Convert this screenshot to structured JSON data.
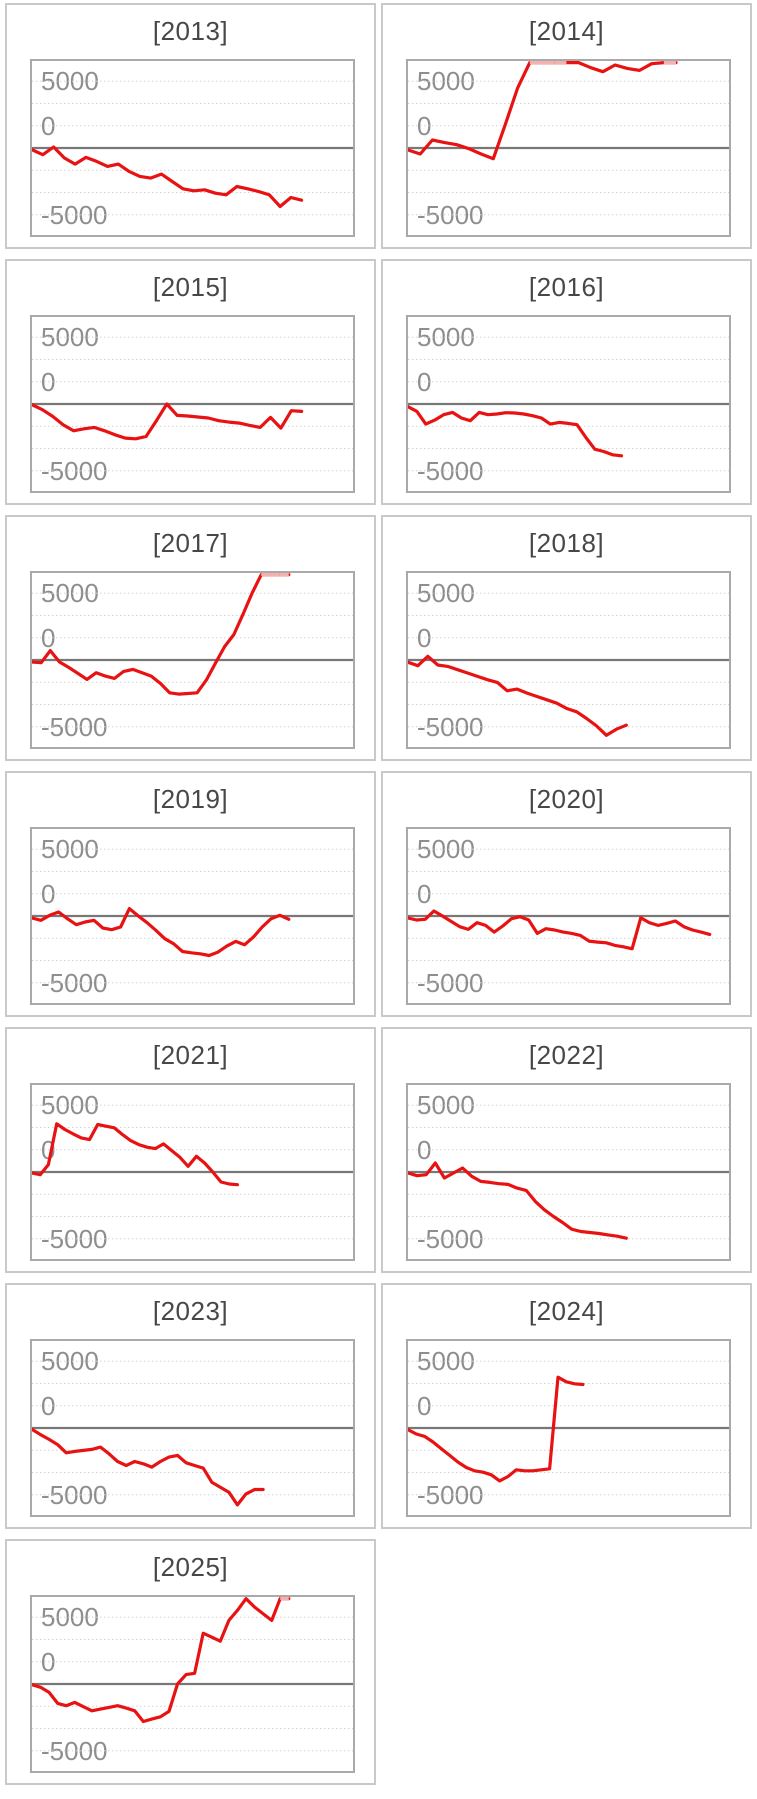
{
  "page": {
    "background": "#ffffff"
  },
  "axis": {
    "tick_labels": {
      "top": "5000",
      "mid": "0",
      "bottom": "-5000"
    },
    "ylim": [
      -6675,
      6675
    ],
    "grid": "dotted-horizontal",
    "zero_line": true
  },
  "style": {
    "series_color": "#e81212",
    "clipped_color": "#f2b2b2",
    "grid_color": "#d2d2d2",
    "zero_line_color": "#787878",
    "plot_border_color": "#a9a9a9",
    "panel_border_color": "#c9c9c9",
    "label_color": "#8e8e8e",
    "title_color": "#474747"
  },
  "chart_data": [
    {
      "type": "line",
      "title": "[2013]",
      "yticks": [
        5000,
        0,
        -5000
      ],
      "ylim": [
        -6675,
        6675
      ],
      "span": 0.84,
      "values": [
        -125,
        -500,
        75,
        -750,
        -1200,
        -700,
        -1000,
        -1375,
        -1200,
        -1750,
        -2125,
        -2250,
        -1950,
        -2500,
        -3050,
        -3200,
        -3125,
        -3375,
        -3500,
        -2875,
        -3050,
        -3250,
        -3500,
        -4375,
        -3700,
        -3900
      ]
    },
    {
      "type": "line",
      "title": "[2014]",
      "yticks": [
        5000,
        0,
        -5000
      ],
      "ylim": [
        -6675,
        6675
      ],
      "span": 0.835,
      "values": [
        -150,
        -450,
        600,
        400,
        250,
        -50,
        -450,
        -800,
        1800,
        4500,
        6700,
        6700,
        6700,
        6700,
        6500,
        6000,
        5700,
        6200,
        5950,
        5800,
        6300,
        6700,
        6700
      ]
    },
    {
      "type": "line",
      "title": "[2015]",
      "yticks": [
        5000,
        0,
        -5000
      ],
      "ylim": [
        -6675,
        6675
      ],
      "span": 0.84,
      "values": [
        -50,
        -425,
        -925,
        -1550,
        -2000,
        -1850,
        -1750,
        -2000,
        -2300,
        -2550,
        -2600,
        -2425,
        -1250,
        0,
        -850,
        -900,
        -975,
        -1050,
        -1250,
        -1350,
        -1425,
        -1600,
        -1750,
        -1000,
        -1800,
        -500,
        -550
      ]
    },
    {
      "type": "line",
      "title": "[2016]",
      "yticks": [
        5000,
        0,
        -5000
      ],
      "ylim": [
        -6675,
        6675
      ],
      "span": 0.665,
      "values": [
        -200,
        -550,
        -1500,
        -1200,
        -800,
        -625,
        -1050,
        -1250,
        -625,
        -800,
        -750,
        -650,
        -675,
        -750,
        -875,
        -1050,
        -1500,
        -1375,
        -1450,
        -1550,
        -2500,
        -3375,
        -3550,
        -3800,
        -3875
      ]
    },
    {
      "type": "line",
      "title": "[2017]",
      "yticks": [
        5000,
        0,
        -5000
      ],
      "ylim": [
        -6675,
        6675
      ],
      "span": 0.8,
      "values": [
        -150,
        -200,
        700,
        -150,
        -550,
        -1000,
        -1450,
        -950,
        -1200,
        -1375,
        -850,
        -700,
        -950,
        -1200,
        -1750,
        -2450,
        -2550,
        -2500,
        -2450,
        -1500,
        -250,
        1000,
        1900,
        3400,
        5000,
        6800,
        6800,
        6800,
        6800
      ]
    },
    {
      "type": "line",
      "title": "[2018]",
      "yticks": [
        5000,
        0,
        -5000
      ],
      "ylim": [
        -6675,
        6675
      ],
      "span": 0.68,
      "values": [
        -175,
        -425,
        275,
        -375,
        -475,
        -725,
        -975,
        -1225,
        -1475,
        -1675,
        -2300,
        -2175,
        -2475,
        -2725,
        -2975,
        -3225,
        -3625,
        -3875,
        -4375,
        -4925,
        -5625,
        -5175,
        -4875
      ]
    },
    {
      "type": "line",
      "title": "[2019]",
      "yticks": [
        5000,
        0,
        -5000
      ],
      "ylim": [
        -6675,
        6675
      ],
      "span": 0.8,
      "values": [
        -150,
        -325,
        50,
        300,
        -200,
        -650,
        -450,
        -325,
        -900,
        -1025,
        -825,
        550,
        0,
        -500,
        -1075,
        -1700,
        -2075,
        -2650,
        -2750,
        -2825,
        -2950,
        -2700,
        -2250,
        -1900,
        -2150,
        -1575,
        -825,
        -200,
        50,
        -250
      ]
    },
    {
      "type": "line",
      "title": "[2020]",
      "yticks": [
        5000,
        0,
        -5000
      ],
      "ylim": [
        -6675,
        6675
      ],
      "span": 0.94,
      "values": [
        -150,
        -300,
        -250,
        375,
        0,
        -400,
        -800,
        -1000,
        -500,
        -700,
        -1200,
        -750,
        -200,
        -50,
        -300,
        -1300,
        -950,
        -1050,
        -1200,
        -1300,
        -1450,
        -1875,
        -1950,
        -2000,
        -2200,
        -2300,
        -2450,
        -125,
        -500,
        -700,
        -550,
        -375,
        -800,
        -1050,
        -1200,
        -1375
      ]
    },
    {
      "type": "line",
      "title": "[2021]",
      "yticks": [
        5000,
        0,
        -5000
      ],
      "ylim": [
        -6675,
        6675
      ],
      "span": 0.64,
      "values": [
        -75,
        -200,
        550,
        3600,
        3175,
        2850,
        2550,
        2425,
        3550,
        3425,
        3300,
        2800,
        2350,
        2050,
        1850,
        1750,
        2100,
        1600,
        1100,
        425,
        1175,
        675,
        0,
        -750,
        -900,
        -950
      ]
    },
    {
      "type": "line",
      "title": "[2022]",
      "yticks": [
        5000,
        0,
        -5000
      ],
      "ylim": [
        -6675,
        6675
      ],
      "span": 0.68,
      "values": [
        -75,
        -275,
        -200,
        675,
        -450,
        -75,
        300,
        -325,
        -700,
        -775,
        -875,
        -925,
        -1200,
        -1375,
        -2200,
        -2825,
        -3325,
        -3775,
        -4275,
        -4450,
        -4525,
        -4600,
        -4700,
        -4800,
        -4950
      ]
    },
    {
      "type": "line",
      "title": "[2023]",
      "yticks": [
        5000,
        0,
        -5000
      ],
      "ylim": [
        -6675,
        6675
      ],
      "span": 0.72,
      "values": [
        -100,
        -500,
        -850,
        -1250,
        -1850,
        -1750,
        -1675,
        -1600,
        -1425,
        -1925,
        -2500,
        -2800,
        -2500,
        -2675,
        -2925,
        -2500,
        -2175,
        -2050,
        -2600,
        -2800,
        -3000,
        -4050,
        -4425,
        -4800,
        -5750,
        -4925,
        -4600,
        -4600
      ]
    },
    {
      "type": "line",
      "title": "[2024]",
      "yticks": [
        5000,
        0,
        -5000
      ],
      "ylim": [
        -6675,
        6675
      ],
      "span": 0.545,
      "values": [
        -125,
        -450,
        -625,
        -1050,
        -1550,
        -2050,
        -2550,
        -2950,
        -3200,
        -3300,
        -3500,
        -3950,
        -3625,
        -3125,
        -3200,
        -3200,
        -3125,
        -3050,
        3800,
        3450,
        3300,
        3250
      ]
    },
    {
      "type": "line",
      "title": "[2025]",
      "yticks": [
        5000,
        0,
        -5000
      ],
      "ylim": [
        -6675,
        6675
      ],
      "span": 0.8,
      "values": [
        -50,
        -250,
        -625,
        -1450,
        -1625,
        -1375,
        -1700,
        -2000,
        -1875,
        -1750,
        -1625,
        -1800,
        -2000,
        -2800,
        -2625,
        -2450,
        -2050,
        0,
        700,
        800,
        3800,
        3500,
        3200,
        4750,
        5500,
        6375,
        5750,
        5250,
        4750,
        6800,
        6800
      ]
    }
  ]
}
